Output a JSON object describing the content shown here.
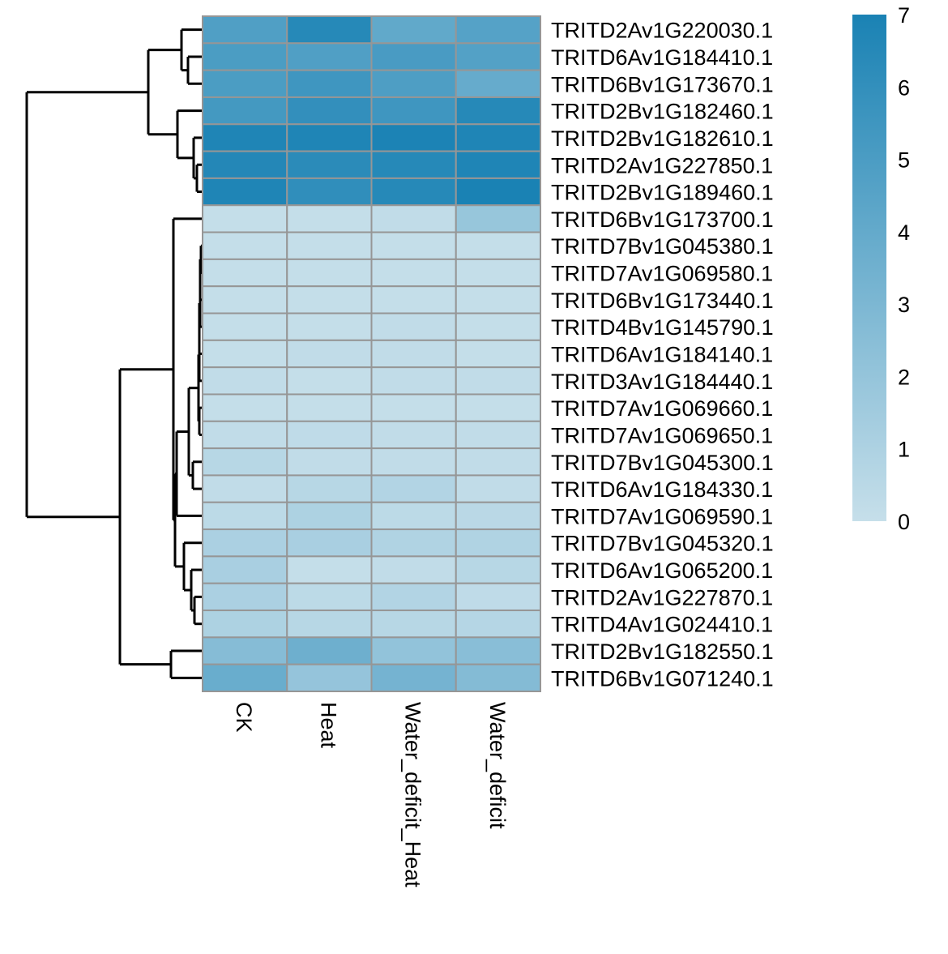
{
  "chart_data": {
    "type": "heatmap",
    "title": "",
    "columns": [
      "CK",
      "Heat",
      "Water_deficit_Heat",
      "Water_deficit"
    ],
    "rows": [
      "TRITD2Av1G220030.1",
      "TRITD6Av1G184410.1",
      "TRITD6Bv1G173670.1",
      "TRITD2Bv1G182460.1",
      "TRITD2Bv1G182610.1",
      "TRITD2Av1G227850.1",
      "TRITD2Bv1G189460.1",
      "TRITD6Bv1G173700.1",
      "TRITD7Bv1G045380.1",
      "TRITD7Av1G069580.1",
      "TRITD6Bv1G173440.1",
      "TRITD4Bv1G145790.1",
      "TRITD6Av1G184140.1",
      "TRITD3Av1G184440.1",
      "TRITD7Av1G069660.1",
      "TRITD7Av1G069650.1",
      "TRITD7Bv1G045300.1",
      "TRITD6Av1G184330.1",
      "TRITD7Av1G069590.1",
      "TRITD7Bv1G045320.1",
      "TRITD6Av1G065200.1",
      "TRITD2Av1G227870.1",
      "TRITD4Av1G024410.1",
      "TRITD2Bv1G182550.1",
      "TRITD6Bv1G071240.1"
    ],
    "values": [
      [
        4.8,
        6.5,
        4.1,
        4.6
      ],
      [
        5.0,
        4.8,
        5.1,
        4.7
      ],
      [
        5.0,
        5.5,
        4.9,
        3.9
      ],
      [
        5.3,
        6.0,
        5.5,
        6.5
      ],
      [
        6.8,
        6.8,
        6.9,
        6.8
      ],
      [
        6.6,
        6.3,
        6.5,
        6.8
      ],
      [
        6.8,
        6.1,
        6.5,
        7.0
      ],
      [
        0.1,
        0.1,
        0.2,
        1.9
      ],
      [
        0.1,
        0.1,
        0.1,
        0.1
      ],
      [
        0.1,
        0.1,
        0.1,
        0.1
      ],
      [
        0.1,
        0.1,
        0.1,
        0.1
      ],
      [
        0.1,
        0.1,
        0.2,
        0.1
      ],
      [
        0.1,
        0.2,
        0.2,
        0.1
      ],
      [
        0.2,
        0.1,
        0.2,
        0.2
      ],
      [
        0.1,
        0.1,
        0.1,
        0.1
      ],
      [
        0.2,
        0.3,
        0.2,
        0.2
      ],
      [
        0.6,
        0.2,
        0.2,
        0.2
      ],
      [
        0.2,
        0.6,
        0.8,
        0.2
      ],
      [
        0.4,
        1.0,
        0.4,
        0.5
      ],
      [
        1.1,
        1.2,
        0.9,
        0.9
      ],
      [
        1.2,
        0.1,
        0.2,
        0.6
      ],
      [
        1.1,
        0.4,
        0.8,
        0.3
      ],
      [
        1.0,
        0.6,
        0.6,
        0.7
      ],
      [
        2.6,
        3.6,
        2.1,
        2.5
      ],
      [
        3.8,
        2.0,
        3.3,
        2.7
      ]
    ],
    "color_scale": {
      "min": 0,
      "max": 7,
      "low_color": "#c6dfea",
      "high_color": "#1a82b4",
      "ticks": [
        0,
        1,
        2,
        3,
        4,
        5,
        6,
        7
      ]
    },
    "cell_border_color": "#969696",
    "dendrogram": "rows",
    "legend_position": "right"
  }
}
